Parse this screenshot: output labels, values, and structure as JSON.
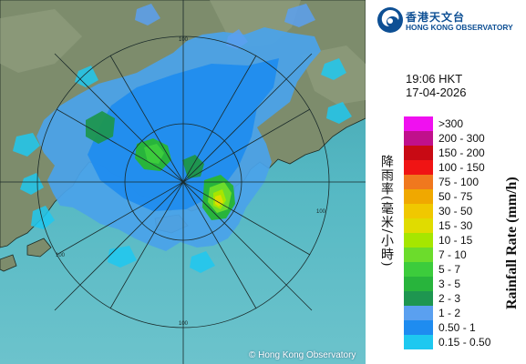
{
  "header": {
    "organization_cn": "香港天文台",
    "organization_en": "HONG KONG OBSERVATORY",
    "logo_icon": "hko-swirl-logo-icon"
  },
  "timestamp": {
    "time": "19:06 HKT",
    "date": "17-04-2026"
  },
  "legend": {
    "title_cn": "降雨率(毫米/小時)",
    "title_en": "Rainfall Rate (mm/h)",
    "items": [
      {
        "label": ">300",
        "color": "#f010f0"
      },
      {
        "label": "200 - 300",
        "color": "#c0108c"
      },
      {
        "label": "150 - 200",
        "color": "#c80a14"
      },
      {
        "label": "100 - 150",
        "color": "#f01414"
      },
      {
        "label": "75 - 100",
        "color": "#f0781e"
      },
      {
        "label": "50 - 75",
        "color": "#f0a800"
      },
      {
        "label": "30 - 50",
        "color": "#f0c800"
      },
      {
        "label": "15 - 30",
        "color": "#e0dc00"
      },
      {
        "label": "10 - 15",
        "color": "#a6e600"
      },
      {
        "label": "7 - 10",
        "color": "#6cdc2c"
      },
      {
        "label": "5 - 7",
        "color": "#3ccc3c"
      },
      {
        "label": "3 - 5",
        "color": "#28b43c"
      },
      {
        "label": "2 - 3",
        "color": "#1e9650"
      },
      {
        "label": "1 - 2",
        "color": "#5aa0f0"
      },
      {
        "label": "0.50 - 1",
        "color": "#1e8cf0"
      },
      {
        "label": "0.15 - 0.50",
        "color": "#1ec8f0"
      }
    ]
  },
  "map": {
    "range_labels": [
      "100",
      "100",
      "100",
      "100"
    ],
    "copyright": "© Hong Kong Observatory",
    "sea_color": "#4fb4bd",
    "land_color": "#7f8f70"
  }
}
